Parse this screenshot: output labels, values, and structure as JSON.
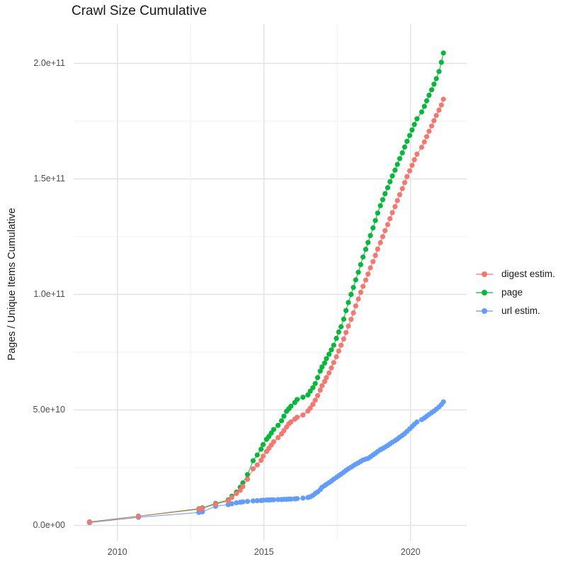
{
  "title": "Crawl Size Cumulative",
  "y_axis_title": "Pages / Unique Items Cumulative",
  "x_axis_title": "",
  "legend": {
    "position": "right",
    "items": [
      {
        "label": "digest estim.",
        "color": "#F8766D"
      },
      {
        "label": "page",
        "color": "#00BA38"
      },
      {
        "label": "url estim.",
        "color": "#619CFF"
      }
    ]
  },
  "colors": {
    "digest": "#F8766D",
    "page": "#00BA38",
    "url": "#619CFF",
    "grid_major": "#E2E2E2",
    "grid_minor": "#F0F0F0",
    "axis_text": "#4D4D4D",
    "title_text": "#1A1A1A",
    "background": "#FFFFFF"
  },
  "chart_data": {
    "type": "scatter",
    "title": "Crawl Size Cumulative",
    "xlabel": "",
    "ylabel": "Pages / Unique Items Cumulative",
    "grid": true,
    "legend_position": "right",
    "x_unit": "year (decimal, one point per crawl)",
    "y_unit": "items, billions (1e9); axis shown in scientific notation",
    "xlim": [
      2008.5,
      2021.9
    ],
    "ylim_e9": [
      -6,
      217
    ],
    "x_ticks_major": [
      2010,
      2015,
      2020
    ],
    "x_tick_labels": [
      "2010",
      "2015",
      "2020"
    ],
    "x_ticks_minor": [
      2012.5,
      2017.5
    ],
    "y_ticks_major_e9": [
      0,
      50,
      100,
      150,
      200
    ],
    "y_tick_labels": [
      "0.0e+00",
      "5.0e+10",
      "1.0e+11",
      "1.5e+11",
      "2.0e+11"
    ],
    "y_ticks_minor_e9": [
      25,
      75,
      125,
      175
    ],
    "series": [
      {
        "name": "digest estim.",
        "color": "#F8766D",
        "points": [
          [
            2009.05,
            1.4
          ],
          [
            2010.72,
            3.9
          ],
          [
            2012.78,
            7.0
          ],
          [
            2012.9,
            7.4
          ],
          [
            2013.35,
            9.2
          ],
          [
            2013.78,
            10.6
          ],
          [
            2013.9,
            12.1
          ],
          [
            2014.06,
            13.8
          ],
          [
            2014.19,
            15.2
          ],
          [
            2014.28,
            16.8
          ],
          [
            2014.44,
            20.0
          ],
          [
            2014.63,
            24.5
          ],
          [
            2014.77,
            26.2
          ],
          [
            2014.9,
            28.2
          ],
          [
            2014.97,
            30.0
          ],
          [
            2015.09,
            32.0
          ],
          [
            2015.17,
            33.4
          ],
          [
            2015.25,
            34.8
          ],
          [
            2015.33,
            36.2
          ],
          [
            2015.48,
            38.0
          ],
          [
            2015.6,
            39.6
          ],
          [
            2015.68,
            41.0
          ],
          [
            2015.77,
            42.6
          ],
          [
            2015.85,
            44.0
          ],
          [
            2015.92,
            44.8
          ],
          [
            2016.05,
            46.0
          ],
          [
            2016.13,
            46.8
          ],
          [
            2016.33,
            47.8
          ],
          [
            2016.5,
            49.5
          ],
          [
            2016.58,
            50.8
          ],
          [
            2016.67,
            52.4
          ],
          [
            2016.75,
            54.2
          ],
          [
            2016.83,
            56.2
          ],
          [
            2016.92,
            58.6
          ],
          [
            2016.98,
            60.5
          ],
          [
            2017.07,
            62.3
          ],
          [
            2017.13,
            64.0
          ],
          [
            2017.22,
            66.0
          ],
          [
            2017.3,
            68.2
          ],
          [
            2017.38,
            70.5
          ],
          [
            2017.47,
            73.0
          ],
          [
            2017.55,
            75.5
          ],
          [
            2017.63,
            78.0
          ],
          [
            2017.72,
            80.7
          ],
          [
            2017.8,
            83.5
          ],
          [
            2017.88,
            86.3
          ],
          [
            2017.97,
            89.2
          ],
          [
            2018.05,
            92.0
          ],
          [
            2018.13,
            95.0
          ],
          [
            2018.22,
            98.0
          ],
          [
            2018.3,
            100.9
          ],
          [
            2018.38,
            103.5
          ],
          [
            2018.47,
            106.2
          ],
          [
            2018.55,
            108.8
          ],
          [
            2018.63,
            111.5
          ],
          [
            2018.72,
            114.2
          ],
          [
            2018.8,
            116.9
          ],
          [
            2018.88,
            119.6
          ],
          [
            2018.97,
            122.4
          ],
          [
            2019.05,
            125.0
          ],
          [
            2019.13,
            127.6
          ],
          [
            2019.22,
            130.2
          ],
          [
            2019.3,
            132.8
          ],
          [
            2019.38,
            135.4
          ],
          [
            2019.47,
            138.0
          ],
          [
            2019.55,
            140.6
          ],
          [
            2019.63,
            143.2
          ],
          [
            2019.72,
            145.8
          ],
          [
            2019.8,
            148.4
          ],
          [
            2019.88,
            151.0
          ],
          [
            2019.97,
            153.5
          ],
          [
            2020.05,
            155.9
          ],
          [
            2020.13,
            158.3
          ],
          [
            2020.22,
            160.7
          ],
          [
            2020.38,
            163.7
          ],
          [
            2020.47,
            166.0
          ],
          [
            2020.55,
            168.3
          ],
          [
            2020.63,
            170.6
          ],
          [
            2020.72,
            172.9
          ],
          [
            2020.8,
            175.2
          ],
          [
            2020.88,
            177.5
          ],
          [
            2020.97,
            179.8
          ],
          [
            2021.05,
            182.0
          ],
          [
            2021.12,
            184.5
          ]
        ]
      },
      {
        "name": "page",
        "color": "#00BA38",
        "points": [
          [
            2009.05,
            1.5
          ],
          [
            2010.72,
            4.0
          ],
          [
            2012.78,
            7.2
          ],
          [
            2012.9,
            7.6
          ],
          [
            2013.35,
            9.5
          ],
          [
            2013.78,
            11.0
          ],
          [
            2013.9,
            12.6
          ],
          [
            2014.06,
            14.4
          ],
          [
            2014.19,
            16.5
          ],
          [
            2014.28,
            18.4
          ],
          [
            2014.44,
            22.0
          ],
          [
            2014.63,
            28.0
          ],
          [
            2014.77,
            30.5
          ],
          [
            2014.9,
            33.0
          ],
          [
            2014.97,
            35.0
          ],
          [
            2015.09,
            37.3
          ],
          [
            2015.17,
            38.5
          ],
          [
            2015.25,
            40.0
          ],
          [
            2015.33,
            41.5
          ],
          [
            2015.48,
            43.3
          ],
          [
            2015.6,
            45.3
          ],
          [
            2015.68,
            47.3
          ],
          [
            2015.77,
            49.4
          ],
          [
            2015.85,
            50.5
          ],
          [
            2015.92,
            51.6
          ],
          [
            2016.05,
            53.2
          ],
          [
            2016.13,
            54.5
          ],
          [
            2016.33,
            55.5
          ],
          [
            2016.5,
            56.5
          ],
          [
            2016.58,
            58.1
          ],
          [
            2016.67,
            59.6
          ],
          [
            2016.75,
            61.4
          ],
          [
            2016.83,
            64.0
          ],
          [
            2016.92,
            66.8
          ],
          [
            2016.98,
            68.6
          ],
          [
            2017.07,
            70.3
          ],
          [
            2017.13,
            72.2
          ],
          [
            2017.22,
            74.1
          ],
          [
            2017.3,
            76.0
          ],
          [
            2017.38,
            78.0
          ],
          [
            2017.47,
            81.0
          ],
          [
            2017.55,
            83.7
          ],
          [
            2017.63,
            86.0
          ],
          [
            2017.72,
            89.3
          ],
          [
            2017.8,
            93.0
          ],
          [
            2017.88,
            96.5
          ],
          [
            2017.97,
            100.0
          ],
          [
            2018.05,
            103.0
          ],
          [
            2018.13,
            106.3
          ],
          [
            2018.22,
            109.6
          ],
          [
            2018.3,
            112.9
          ],
          [
            2018.38,
            116.2
          ],
          [
            2018.47,
            119.5
          ],
          [
            2018.55,
            122.5
          ],
          [
            2018.63,
            125.5
          ],
          [
            2018.72,
            128.8
          ],
          [
            2018.8,
            132.0
          ],
          [
            2018.88,
            135.2
          ],
          [
            2018.97,
            138.4
          ],
          [
            2019.05,
            141.0
          ],
          [
            2019.13,
            143.6
          ],
          [
            2019.22,
            146.2
          ],
          [
            2019.3,
            148.8
          ],
          [
            2019.38,
            151.3
          ],
          [
            2019.47,
            153.8
          ],
          [
            2019.55,
            156.3
          ],
          [
            2019.63,
            158.8
          ],
          [
            2019.72,
            161.3
          ],
          [
            2019.8,
            163.8
          ],
          [
            2019.88,
            166.3
          ],
          [
            2019.97,
            168.8
          ],
          [
            2020.05,
            171.2
          ],
          [
            2020.13,
            173.6
          ],
          [
            2020.22,
            176.0
          ],
          [
            2020.38,
            179.0
          ],
          [
            2020.47,
            181.4
          ],
          [
            2020.55,
            183.8
          ],
          [
            2020.63,
            186.2
          ],
          [
            2020.72,
            188.6
          ],
          [
            2020.8,
            191.0
          ],
          [
            2020.88,
            193.4
          ],
          [
            2020.97,
            196.5
          ],
          [
            2021.05,
            200.5
          ],
          [
            2021.12,
            204.5
          ]
        ]
      },
      {
        "name": "url estim.",
        "color": "#619CFF",
        "points": [
          [
            2009.05,
            1.2
          ],
          [
            2010.72,
            3.5
          ],
          [
            2012.78,
            5.6
          ],
          [
            2012.9,
            5.9
          ],
          [
            2013.35,
            8.3
          ],
          [
            2013.78,
            9.0
          ],
          [
            2013.9,
            9.4
          ],
          [
            2014.06,
            9.8
          ],
          [
            2014.19,
            10.0
          ],
          [
            2014.28,
            10.2
          ],
          [
            2014.44,
            10.4
          ],
          [
            2014.63,
            10.6
          ],
          [
            2014.77,
            10.7
          ],
          [
            2014.9,
            10.8
          ],
          [
            2014.97,
            10.9
          ],
          [
            2015.09,
            11.0
          ],
          [
            2015.17,
            11.0
          ],
          [
            2015.25,
            11.1
          ],
          [
            2015.33,
            11.1
          ],
          [
            2015.48,
            11.2
          ],
          [
            2015.6,
            11.2
          ],
          [
            2015.68,
            11.3
          ],
          [
            2015.77,
            11.3
          ],
          [
            2015.85,
            11.4
          ],
          [
            2015.92,
            11.4
          ],
          [
            2016.05,
            11.5
          ],
          [
            2016.13,
            11.6
          ],
          [
            2016.33,
            11.8
          ],
          [
            2016.5,
            12.1
          ],
          [
            2016.58,
            12.4
          ],
          [
            2016.67,
            13.0
          ],
          [
            2016.75,
            13.8
          ],
          [
            2016.83,
            14.5
          ],
          [
            2016.92,
            15.5
          ],
          [
            2016.98,
            16.5
          ],
          [
            2017.07,
            17.2
          ],
          [
            2017.13,
            17.8
          ],
          [
            2017.22,
            18.5
          ],
          [
            2017.3,
            19.2
          ],
          [
            2017.38,
            20.0
          ],
          [
            2017.47,
            20.8
          ],
          [
            2017.55,
            21.5
          ],
          [
            2017.63,
            22.2
          ],
          [
            2017.72,
            23.0
          ],
          [
            2017.8,
            23.8
          ],
          [
            2017.88,
            24.5
          ],
          [
            2017.97,
            25.2
          ],
          [
            2018.05,
            25.9
          ],
          [
            2018.13,
            26.5
          ],
          [
            2018.22,
            27.1
          ],
          [
            2018.3,
            27.7
          ],
          [
            2018.38,
            28.3
          ],
          [
            2018.47,
            28.7
          ],
          [
            2018.55,
            29.0
          ],
          [
            2018.63,
            29.7
          ],
          [
            2018.72,
            30.5
          ],
          [
            2018.8,
            31.2
          ],
          [
            2018.88,
            32.0
          ],
          [
            2018.97,
            32.8
          ],
          [
            2019.05,
            33.3
          ],
          [
            2019.13,
            33.9
          ],
          [
            2019.22,
            34.6
          ],
          [
            2019.3,
            35.3
          ],
          [
            2019.38,
            36.0
          ],
          [
            2019.47,
            36.7
          ],
          [
            2019.55,
            37.4
          ],
          [
            2019.63,
            38.2
          ],
          [
            2019.72,
            39.0
          ],
          [
            2019.8,
            39.8
          ],
          [
            2019.88,
            40.7
          ],
          [
            2019.97,
            41.8
          ],
          [
            2020.05,
            42.8
          ],
          [
            2020.13,
            43.8
          ],
          [
            2020.22,
            44.8
          ],
          [
            2020.38,
            45.8
          ],
          [
            2020.47,
            46.5
          ],
          [
            2020.55,
            47.3
          ],
          [
            2020.63,
            48.0
          ],
          [
            2020.72,
            48.8
          ],
          [
            2020.8,
            49.5
          ],
          [
            2020.88,
            50.3
          ],
          [
            2020.97,
            51.3
          ],
          [
            2021.05,
            52.3
          ],
          [
            2021.12,
            53.5
          ]
        ]
      }
    ]
  }
}
